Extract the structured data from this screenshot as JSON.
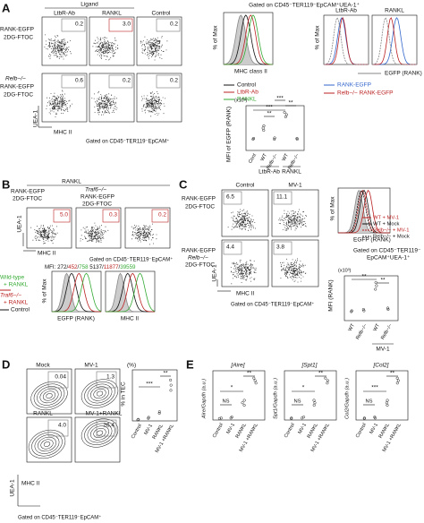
{
  "panel_a": {
    "letter": "A",
    "ligand": "Ligand",
    "columns": [
      "LtbR-Ab",
      "RANKL",
      "Control"
    ],
    "row1_label": [
      "RANK-EGFP",
      "2DG-FTOC"
    ],
    "row2_label": [
      "Relb−/−",
      "RANK-EGFP",
      "2DG-FTOC"
    ],
    "gates": [
      [
        "0.2",
        "3.0",
        "0.2"
      ],
      [
        "0.6",
        "0.2",
        "0.2"
      ]
    ],
    "y_axis": "UEA-1",
    "x_axis": "MHC II",
    "gating": "Gated on CD45⁻TER119⁻EpCAM⁺",
    "hist_gating": "Gated on CD45⁻TER119⁻EpCAM⁺UEA-1⁺",
    "hist_y": "% of Max",
    "hist1_x": "MHC class II",
    "hist1_legend": [
      "Control",
      "LtbR-Ab",
      "RANKL"
    ],
    "hist2_columns": [
      "LtbR-Ab",
      "RANKL"
    ],
    "hist2_x": "EGFP (RANK)",
    "hist2_legend": [
      "RANK-EGFP",
      "Relb−/− RANK-EGFP"
    ],
    "mfi_scale": "(x10³)",
    "mfi_y": "MFI of EGFP (RANK)",
    "mfi_sig": [
      "**",
      "***",
      "***",
      "**"
    ],
    "mfi_x": [
      "Cont",
      "WT",
      "Relb−/−",
      "WT",
      "Relb−/−"
    ],
    "mfi_groups": [
      "LtbR-Ab",
      "RANKL"
    ]
  },
  "panel_b": {
    "letter": "B",
    "ligand": "RANKL",
    "col1": [
      "RANK-EGFP",
      "2DG-FTOC"
    ],
    "col2": [
      "Traf6−/−",
      "RANK-EGFP",
      "2DG-FTOC"
    ],
    "gates": [
      "5.0",
      "0.3",
      "0.2"
    ],
    "y_axis": "UEA-1",
    "x_axis": "MHC II",
    "gating": "Gated on CD45⁻TER119⁻EpCAM⁺",
    "mfi_label": "MFI:",
    "separator": "/",
    "mfi_egfp": [
      "272",
      "452",
      "758"
    ],
    "mfi_mhc": [
      "5137",
      "11877",
      "39559"
    ],
    "legend": [
      "Wild-type",
      "+ RANKL",
      "Traf6−/−",
      "+ RANKL",
      "Control"
    ],
    "hist_y": "% of Max",
    "hist_x": [
      "EGFP (RANK)",
      "MHC II"
    ]
  },
  "panel_c": {
    "letter": "C",
    "columns": [
      "Control",
      "MV-1"
    ],
    "row1_label": [
      "RANK-EGFP",
      "2DG-FTOC"
    ],
    "row2_label": [
      "RANK-EGFP",
      "Relb−/−",
      "2DG-FTOC"
    ],
    "gates": [
      [
        "6.5",
        "11.1"
      ],
      [
        "4.4",
        "3.8"
      ]
    ],
    "y_axis": "UEA-1",
    "x_axis": "MHC II",
    "gating": "Gated on CD45⁻TER119⁻EpCAM⁺",
    "hist_y": "% of Max",
    "hist_x": "EGFP (RANK)",
    "legend": [
      "WT + MV-1",
      "WT + Mock",
      "Relb−/− + MV-1",
      "Relb−/− + Mock"
    ],
    "hist_gating": [
      "Gated on CD45⁻TER119⁻",
      "EpCAM⁺UEA-1⁺"
    ],
    "mfi_scale": "(x10³)",
    "mfi_y": "MFI (RANK)",
    "sig": [
      "**",
      "**"
    ],
    "mfi_x": [
      "WT",
      "Relb−/−",
      "WT",
      "Relb−/−"
    ],
    "mfi_group": "MV-1"
  },
  "panel_d": {
    "letter": "D",
    "conditions": [
      "Mock",
      "MV-1",
      "RANKL",
      "MV-1+RANKL"
    ],
    "gates": [
      "0.04",
      "1.3",
      "4.0",
      "26.4"
    ],
    "y_axis": "UEA-1",
    "x_axis": "MHC II",
    "gating": "Gated on CD45⁻TER119⁻EpCAM⁺",
    "unit": "(%)",
    "y_label": "% in TEC",
    "x": [
      "Control",
      "MV-1",
      "RANKL",
      "MV-1 +RANKL"
    ],
    "sig": [
      "***",
      "**"
    ]
  },
  "panel_e": {
    "letter": "E",
    "genes": [
      {
        "title": "[Aire]",
        "y": "Aire/Gapdh (a.u.)",
        "sig": [
          "NS",
          "*",
          "**"
        ]
      },
      {
        "title": "[Spt1]",
        "y": "Spt1/Gapdh (a.u.)",
        "sig": [
          "NS",
          "*",
          "**"
        ]
      },
      {
        "title": "[Col2]",
        "y": "Col2/Gapdh (a.u.)",
        "sig": [
          "NS",
          "***",
          "**"
        ]
      }
    ],
    "x": [
      "Control",
      "MV-1",
      "RANKL",
      "MV-1 +RANKL"
    ]
  }
}
